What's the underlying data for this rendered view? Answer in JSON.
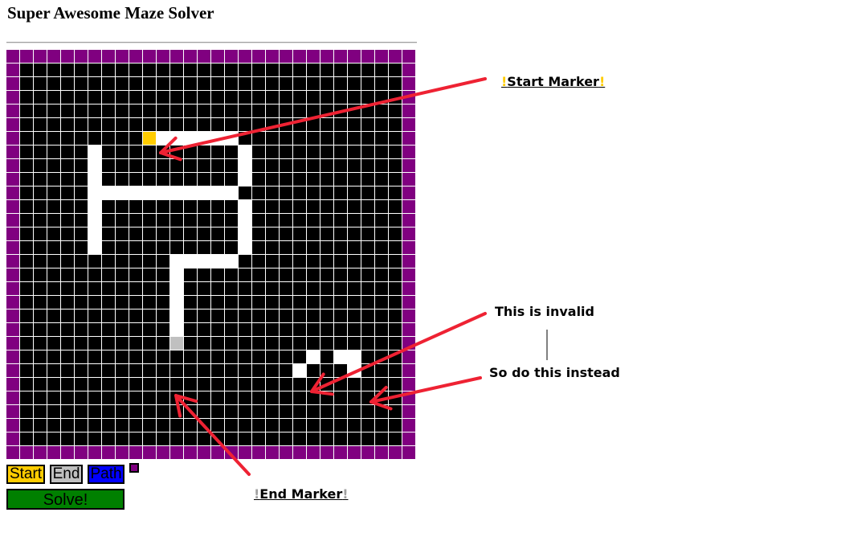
{
  "page": {
    "title": "Super Awesome Maze Solver"
  },
  "maze": {
    "rows": 30,
    "cols": 30,
    "legend": {
      "#": "wall",
      "P": "border",
      ".": "open",
      "S": "start",
      "E": "end"
    },
    "colors": {
      "wall": "#000000",
      "border": "#800080",
      "open": "#ffffff",
      "start": "#ffcc00",
      "end": "#c0c0c0"
    },
    "layout": [
      "PPPPPPPPPPPPPPPPPPPPPPPPPPPPPP",
      "P############################P",
      "P############################P",
      "P############################P",
      "P############################P",
      "P############################P",
      "P#########S......############P",
      "P#####.##########.###########P",
      "P#####.##########.###########P",
      "P#####.##########.###########P",
      "P#####...........############P",
      "P#####.##########.###########P",
      "P#####.##########.###########P",
      "P#####.##########.###########P",
      "P#####.##########.###########P",
      "P###########.....############P",
      "P###########.################P",
      "P###########.################P",
      "P###########.################P",
      "P###########.################P",
      "P###########.################P",
      "P###########E################P",
      "P#####################.#..###P",
      "P####################.###.###P",
      "P############################P",
      "P############################P",
      "P############################P",
      "P############################P",
      "P############################P",
      "PPPPPPPPPPPPPPPPPPPPPPPPPPPPPP"
    ]
  },
  "controls": {
    "start_label": "Start",
    "end_label": "End",
    "path_label": "Path",
    "solve_label": "Solve!",
    "path_color": "#0000ff",
    "solve_color": "#008000"
  },
  "annotations": {
    "start_marker": {
      "bang": "!",
      "text": "Start Marker"
    },
    "end_marker": {
      "bang": "!",
      "text": "End Marker"
    },
    "invalid": "This is invalid",
    "instead": "So do this instead",
    "arrow_color": "#ee2233"
  }
}
